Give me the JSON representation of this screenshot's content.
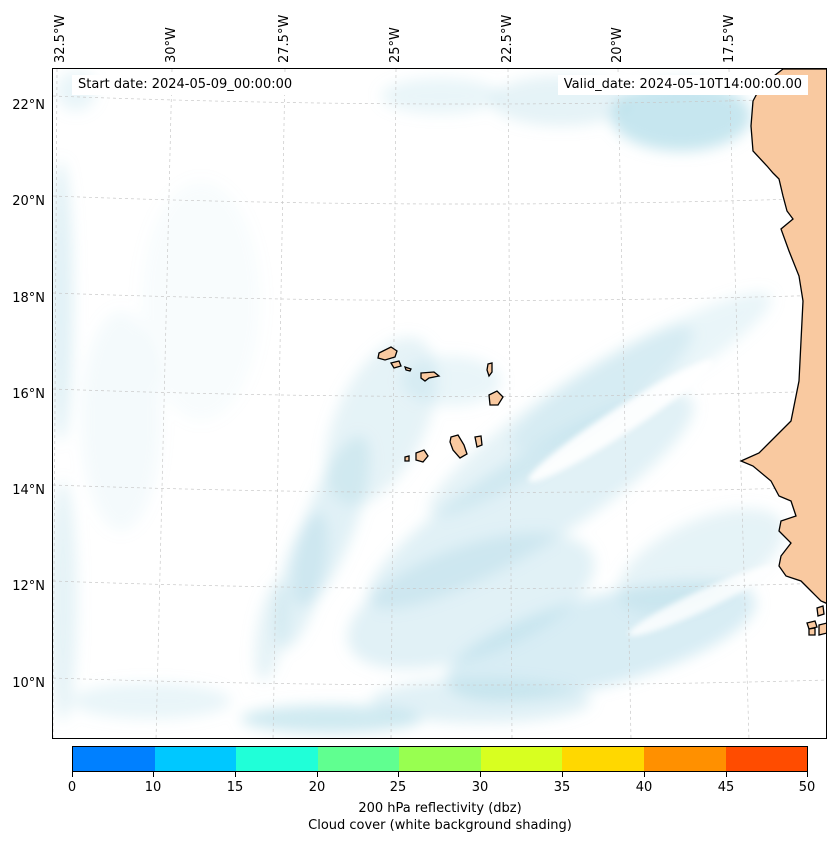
{
  "header": {
    "start_date": "Start date: 2024-05-09_00:00:00",
    "valid_date": "Valid_date: 2024-05-10T14:00:00.00"
  },
  "axes": {
    "longitude_labels": [
      "32.5°W",
      "30°W",
      "27.5°W",
      "25°W",
      "22.5°W",
      "20°W",
      "17.5°W"
    ],
    "latitude_labels": [
      "22°N",
      "20°N",
      "18°N",
      "16°N",
      "14°N",
      "12°N",
      "10°N"
    ]
  },
  "colorbar": {
    "colors": [
      "#0080ff",
      "#00c8ff",
      "#20ffd8",
      "#60ff90",
      "#98ff50",
      "#d8ff20",
      "#ffd800",
      "#ff9000",
      "#ff4c00"
    ],
    "ticks": [
      "0",
      "10",
      "15",
      "20",
      "25",
      "30",
      "35",
      "40",
      "45",
      "50"
    ],
    "title_line1": "200 hPa reflectivity (dbz)",
    "title_line2": "Cloud cover (white background shading)"
  },
  "colors": {
    "cloud": "#a8d8e6",
    "land": "#f9c9a0",
    "coast": "#000000"
  }
}
